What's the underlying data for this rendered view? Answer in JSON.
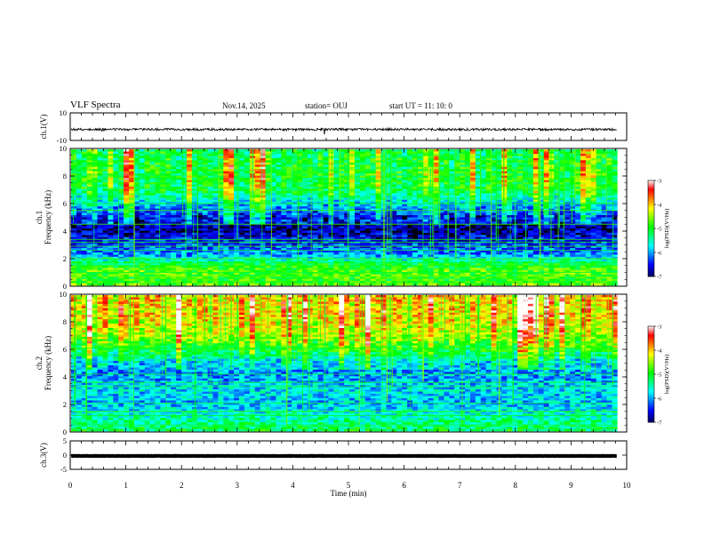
{
  "header": {
    "title": "VLF Spectra",
    "date": "Nov.14, 2025",
    "station": "station= OUJ",
    "start_ut": "start  UT =   11: 10: 0"
  },
  "colors": {
    "spectrogram_background": "#000010",
    "trace": "#000000",
    "colormap": [
      "#000000",
      "#00007f",
      "#0000ff",
      "#0080ff",
      "#00ffff",
      "#00ff80",
      "#00ff00",
      "#80ff00",
      "#ffff00",
      "#ff8000",
      "#ff0000",
      "#ffffff"
    ]
  },
  "chart_data": [
    {
      "type": "line",
      "name": "ch1-waveform",
      "ylabel": "ch.1(V)",
      "ylim": [
        -10,
        10
      ],
      "yticks": [
        "10",
        "-10"
      ],
      "baseline": -2,
      "xlim": [
        0,
        10
      ],
      "data_end_min": 9.83
    },
    {
      "type": "heatmap",
      "name": "ch1-spectrogram",
      "ylabel": "ch.1\nFrequency (kHz)",
      "ylim": [
        0,
        10
      ],
      "yticks": [
        "0",
        "2",
        "4",
        "6",
        "8",
        "10"
      ],
      "xlim": [
        0,
        10
      ],
      "data_end_min": 9.83,
      "colorbar": {
        "label": "log(PSD)(V²/Hz)",
        "range": [
          -7,
          -3
        ],
        "ticks": [
          "-3",
          "-4",
          "-5",
          "-6",
          "-7"
        ]
      },
      "band_profile": [
        {
          "f_khz": 0,
          "level": 0.62
        },
        {
          "f_khz": 0.5,
          "level": 0.55
        },
        {
          "f_khz": 1,
          "level": 0.6
        },
        {
          "f_khz": 1.6,
          "level": 0.5
        },
        {
          "f_khz": 2.2,
          "level": 0.3
        },
        {
          "f_khz": 3,
          "level": 0.22
        },
        {
          "f_khz": 4,
          "level": 0.12
        },
        {
          "f_khz": 5,
          "level": 0.15
        },
        {
          "f_khz": 6,
          "level": 0.3
        },
        {
          "f_khz": 7,
          "level": 0.45
        },
        {
          "f_khz": 8,
          "level": 0.48
        },
        {
          "f_khz": 9,
          "level": 0.46
        },
        {
          "f_khz": 10,
          "level": 0.44
        }
      ],
      "spectral_lines_khz": [
        0.3,
        0.7,
        1.0,
        1.5,
        1.7,
        2.0,
        2.6,
        2.9,
        3.2,
        3.4,
        4.5,
        5.5,
        6.0
      ]
    },
    {
      "type": "heatmap",
      "name": "ch2-spectrogram",
      "ylabel": "ch.2\nFrequency (kHz)",
      "ylim": [
        0,
        10
      ],
      "yticks": [
        "0",
        "2",
        "4",
        "6",
        "8",
        "10"
      ],
      "xlim": [
        0,
        10
      ],
      "data_end_min": 9.83,
      "colorbar": {
        "label": "log(PSD)(V²/Hz)",
        "range": [
          -7,
          -3
        ],
        "ticks": [
          "-3",
          "-4",
          "-5",
          "-6",
          "-7"
        ]
      },
      "band_profile": [
        {
          "f_khz": 0,
          "level": 0.5
        },
        {
          "f_khz": 1,
          "level": 0.42
        },
        {
          "f_khz": 2,
          "level": 0.32
        },
        {
          "f_khz": 3,
          "level": 0.35
        },
        {
          "f_khz": 4,
          "level": 0.3
        },
        {
          "f_khz": 5,
          "level": 0.3
        },
        {
          "f_khz": 6,
          "level": 0.48
        },
        {
          "f_khz": 7,
          "level": 0.6
        },
        {
          "f_khz": 8,
          "level": 0.66
        },
        {
          "f_khz": 9,
          "level": 0.68
        },
        {
          "f_khz": 10,
          "level": 0.68
        }
      ],
      "spectral_lines_khz": [
        0.5,
        1.2,
        1.5,
        2.1,
        3.3,
        3.6,
        4.2,
        5.6,
        6.1
      ]
    },
    {
      "type": "line",
      "name": "ch3-waveform",
      "ylabel": "ch.3(V)",
      "ylim": [
        -5,
        5
      ],
      "yticks": [
        "5",
        "0",
        "-5"
      ],
      "baseline": -0.3,
      "xlim": [
        0,
        10
      ],
      "data_end_min": 9.83
    }
  ],
  "x_axis": {
    "label": "Time (min)",
    "ticks": [
      "0",
      "1",
      "2",
      "3",
      "4",
      "5",
      "6",
      "7",
      "8",
      "9",
      "10"
    ]
  }
}
